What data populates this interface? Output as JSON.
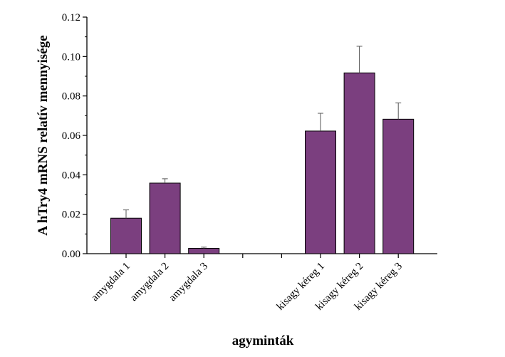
{
  "chart_data": {
    "type": "bar",
    "title": "",
    "xlabel": "agyminták",
    "ylabel": "A hTry4 mRNS relatív mennyisége",
    "ylim": [
      0,
      0.12
    ],
    "yticks": [
      "0.00",
      "0.02",
      "0.04",
      "0.06",
      "0.08",
      "0.10",
      "0.12"
    ],
    "ytick_values": [
      0,
      0.02,
      0.04,
      0.06,
      0.08,
      0.1,
      0.12
    ],
    "grid": false,
    "legend": "none",
    "bar_color": "#7b3f7f",
    "categories": [
      "amygdala 1",
      "amygdala 2",
      "amygdala 3",
      "kisagy kéreg 1",
      "kisagy kéreg 2",
      "kisagy kéreg 3"
    ],
    "values": [
      0.018,
      0.0358,
      0.0027,
      0.0622,
      0.0917,
      0.0682
    ],
    "error_upper": [
      0.0042,
      0.0022,
      0.0006,
      0.009,
      0.0135,
      0.0083
    ],
    "group_gap_after": 2
  }
}
